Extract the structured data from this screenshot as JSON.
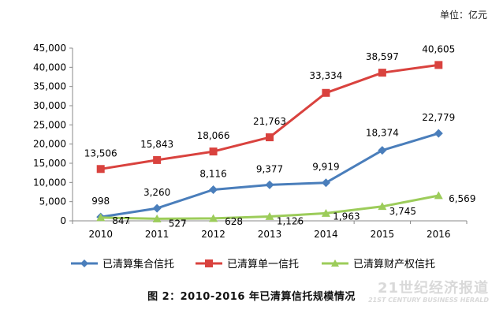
{
  "unit_label": "单位：亿元",
  "caption": "图 2：2010-2016 年已清算信托规模情况",
  "watermark": {
    "main": "21世纪经济报道",
    "sub": "21ST CENTURY BUSINESS HERALD"
  },
  "chart_data": {
    "type": "line",
    "categories": [
      "2010",
      "2011",
      "2012",
      "2013",
      "2014",
      "2015",
      "2016"
    ],
    "y_ticks": [
      "0",
      "5,000",
      "10,000",
      "15,000",
      "20,000",
      "25,000",
      "30,000",
      "35,000",
      "40,000",
      "45,000"
    ],
    "ylim": [
      0,
      45000
    ],
    "grid": false,
    "legend_position": "bottom",
    "series": [
      {
        "name": "已清算集合信托",
        "color": "#4a7ebb",
        "marker": "diamond",
        "values": [
          998,
          3260,
          8116,
          9377,
          9919,
          18374,
          22779
        ],
        "labels": [
          "998",
          "3,260",
          "8,116",
          "9,377",
          "9,919",
          "18,374",
          "22,779"
        ]
      },
      {
        "name": "已清算单一信托",
        "color": "#d9423e",
        "marker": "square",
        "values": [
          13506,
          15843,
          18066,
          21763,
          33334,
          38597,
          40605
        ],
        "labels": [
          "13,506",
          "15,843",
          "18,066",
          "21,763",
          "33,334",
          "38,597",
          "40,605"
        ]
      },
      {
        "name": "已清算财产权信托",
        "color": "#9ccc5a",
        "marker": "triangle",
        "values": [
          847,
          527,
          628,
          1126,
          1963,
          3745,
          6569
        ],
        "labels": [
          "847",
          "527",
          "628",
          "1,126",
          "1,963",
          "3,745",
          "6,569"
        ]
      }
    ]
  }
}
